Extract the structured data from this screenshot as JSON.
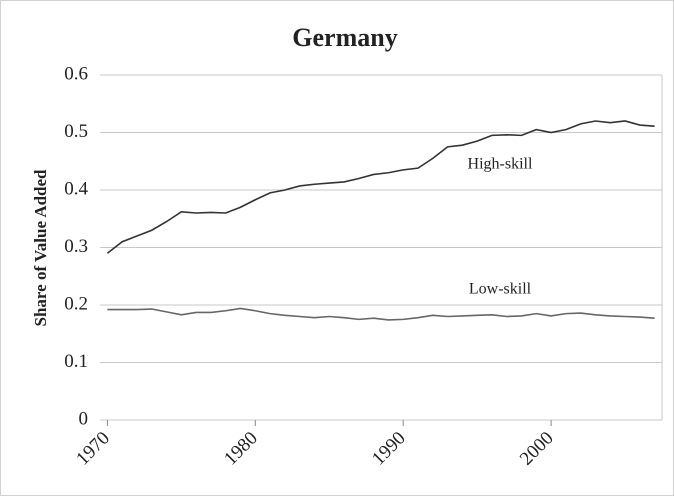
{
  "chart_data": {
    "type": "line",
    "title": "Germany",
    "ylabel": "Share of Value Added",
    "x": [
      1970,
      1971,
      1972,
      1973,
      1974,
      1975,
      1976,
      1977,
      1978,
      1979,
      1980,
      1981,
      1982,
      1983,
      1984,
      1985,
      1986,
      1987,
      1988,
      1989,
      1990,
      1991,
      1992,
      1993,
      1994,
      1995,
      1996,
      1997,
      1998,
      1999,
      2000,
      2001,
      2002,
      2003,
      2004,
      2005,
      2006,
      2007
    ],
    "xlim": [
      1969.5,
      2007.5
    ],
    "xticks": [
      1970,
      1980,
      1990,
      2000
    ],
    "ylim": [
      0,
      0.6
    ],
    "yticks": [
      0,
      0.1,
      0.2,
      0.3,
      0.4,
      0.5,
      0.6
    ],
    "grid": true,
    "series": [
      {
        "name": "High-skill",
        "color": "#333333",
        "values": [
          0.29,
          0.31,
          0.32,
          0.33,
          0.345,
          0.362,
          0.36,
          0.361,
          0.36,
          0.37,
          0.383,
          0.395,
          0.4,
          0.407,
          0.41,
          0.412,
          0.414,
          0.42,
          0.427,
          0.43,
          0.435,
          0.438,
          0.455,
          0.475,
          0.478,
          0.485,
          0.495,
          0.496,
          0.495,
          0.505,
          0.5,
          0.505,
          0.515,
          0.52,
          0.517,
          0.52,
          0.513,
          0.511
        ]
      },
      {
        "name": "Low-skill",
        "color": "#666666",
        "values": [
          0.192,
          0.192,
          0.192,
          0.193,
          0.188,
          0.183,
          0.187,
          0.187,
          0.19,
          0.194,
          0.19,
          0.185,
          0.182,
          0.18,
          0.178,
          0.18,
          0.178,
          0.175,
          0.177,
          0.174,
          0.175,
          0.178,
          0.182,
          0.18,
          0.181,
          0.182,
          0.183,
          0.18,
          0.181,
          0.185,
          0.181,
          0.185,
          0.186,
          0.183,
          0.181,
          0.18,
          0.179,
          0.177
        ]
      }
    ]
  }
}
